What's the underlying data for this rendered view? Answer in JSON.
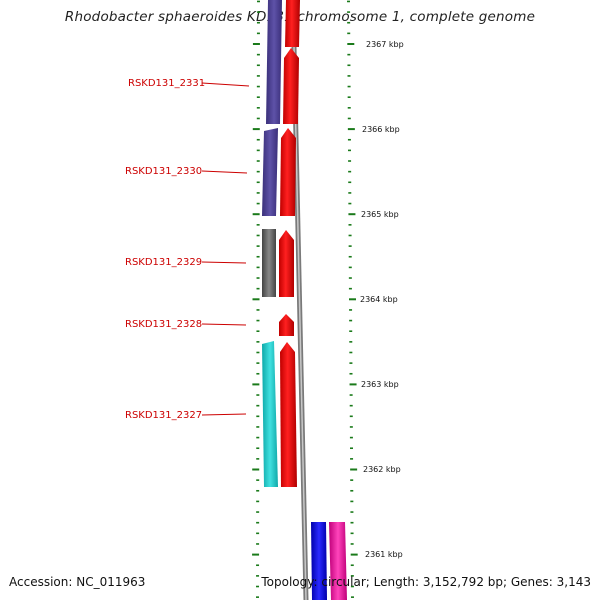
{
  "title": "Rhodobacter sphaeroides KD131 chromosome 1, complete genome",
  "accession_text": "Accession: NC_011963",
  "topology_text": "Topology: circular; Length: 3,152,792 bp; Genes: 3,143",
  "scale": {
    "unit": "kbp",
    "labels": [
      "2367 kbp",
      "2366 kbp",
      "2365 kbp",
      "2364 kbp",
      "2363 kbp",
      "2362 kbp",
      "2361 kbp"
    ]
  },
  "genes": [
    {
      "id": "RSKD131_2331",
      "label": "RSKD131_2331"
    },
    {
      "id": "RSKD131_2330",
      "label": "RSKD131_2330"
    },
    {
      "id": "RSKD131_2329",
      "label": "RSKD131_2329"
    },
    {
      "id": "RSKD131_2328",
      "label": "RSKD131_2328"
    },
    {
      "id": "RSKD131_2327",
      "label": "RSKD131_2327"
    }
  ],
  "colors": {
    "label": "#cc0000",
    "backbone": "#888888",
    "tick": "#1a7a1a",
    "cds": "#ff0000",
    "cog_purple": "#4b3f8f",
    "cog_grey": "#666666",
    "cog_cyan": "#22c8c8",
    "cog_blue": "#0000ee",
    "cog_magenta": "#ee1199"
  }
}
